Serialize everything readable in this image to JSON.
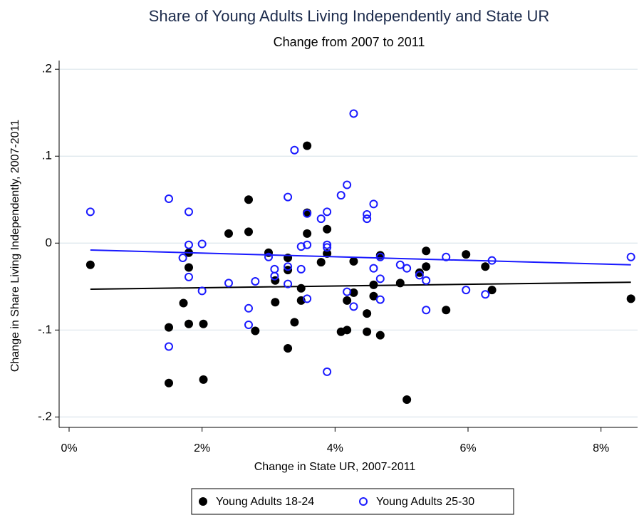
{
  "chart_data": {
    "type": "scatter",
    "title": "Share of Young Adults Living Independently and State UR",
    "subtitle": "Change from 2007 to 2011",
    "x_label": "Change in State UR, 2007-2011",
    "y_label": "Change in Share Living Independently, 2007-2011",
    "xlim": [
      -0.15,
      8.55
    ],
    "ylim": [
      -0.212,
      0.21
    ],
    "xticks": [
      {
        "value": 0,
        "label": "0%"
      },
      {
        "value": 2,
        "label": "2%"
      },
      {
        "value": 4,
        "label": "4%"
      },
      {
        "value": 6,
        "label": "6%"
      },
      {
        "value": 8,
        "label": "8%"
      }
    ],
    "yticks": [
      {
        "value": -0.2,
        "label": "-.2"
      },
      {
        "value": -0.1,
        "label": "-.1"
      },
      0,
      {
        "value": 0.1,
        "label": ".1"
      },
      {
        "value": 0.2,
        "label": ".2"
      }
    ],
    "grid": true,
    "legend": "bottom",
    "series": [
      {
        "name": "Young Adults 18-24",
        "color": "#000000",
        "marker": "filled",
        "x": [
          0.32,
          1.5,
          1.5,
          1.72,
          1.8,
          1.8,
          1.8,
          2.02,
          2.02,
          2.4,
          2.7,
          2.7,
          2.8,
          3.0,
          3.1,
          3.1,
          3.29,
          3.29,
          3.29,
          3.39,
          3.49,
          3.49,
          3.58,
          3.58,
          3.58,
          3.79,
          3.88,
          3.88,
          4.09,
          4.18,
          4.18,
          4.28,
          4.28,
          4.48,
          4.48,
          4.58,
          4.58,
          4.68,
          4.68,
          4.98,
          5.08,
          5.27,
          5.37,
          5.37,
          5.67,
          5.97,
          6.26,
          6.36,
          8.45
        ],
        "values": [
          -0.025,
          -0.097,
          -0.161,
          -0.069,
          -0.011,
          -0.028,
          -0.093,
          -0.093,
          -0.157,
          0.011,
          0.05,
          0.013,
          -0.101,
          -0.011,
          -0.043,
          -0.068,
          -0.017,
          -0.031,
          -0.121,
          -0.091,
          -0.052,
          -0.066,
          0.112,
          0.035,
          0.011,
          -0.022,
          0.016,
          -0.012,
          -0.102,
          -0.066,
          -0.1,
          -0.021,
          -0.057,
          -0.081,
          -0.102,
          -0.048,
          -0.061,
          -0.014,
          -0.106,
          -0.046,
          -0.18,
          -0.034,
          -0.009,
          -0.027,
          -0.077,
          -0.013,
          -0.027,
          -0.054,
          -0.064
        ],
        "fit_x": [
          0.32,
          8.45
        ],
        "fit_values": [
          -0.053,
          -0.045
        ]
      },
      {
        "name": "Young Adults 25-30",
        "color": "#1a1aff",
        "marker": "hollow",
        "x": [
          0.32,
          1.5,
          1.5,
          1.71,
          1.8,
          1.8,
          1.8,
          2.0,
          2.0,
          2.4,
          2.7,
          2.7,
          2.8,
          3.0,
          3.09,
          3.09,
          3.29,
          3.29,
          3.29,
          3.39,
          3.49,
          3.49,
          3.58,
          3.58,
          3.58,
          3.79,
          3.88,
          3.88,
          3.88,
          3.88,
          4.09,
          4.18,
          4.18,
          4.28,
          4.28,
          4.48,
          4.48,
          4.58,
          4.58,
          4.68,
          4.68,
          4.68,
          4.98,
          5.08,
          5.27,
          5.37,
          5.37,
          5.67,
          5.97,
          6.26,
          6.36,
          8.45
        ],
        "values": [
          0.036,
          0.051,
          -0.119,
          -0.017,
          0.036,
          -0.002,
          -0.039,
          -0.001,
          -0.055,
          -0.046,
          -0.075,
          -0.094,
          -0.044,
          -0.016,
          -0.03,
          -0.038,
          0.053,
          -0.027,
          -0.047,
          0.107,
          -0.004,
          -0.03,
          0.034,
          -0.002,
          -0.064,
          0.028,
          0.036,
          -0.002,
          -0.005,
          -0.148,
          0.055,
          0.067,
          -0.056,
          -0.073,
          0.149,
          0.033,
          0.028,
          0.045,
          -0.029,
          -0.041,
          -0.065,
          -0.016,
          -0.025,
          -0.029,
          -0.037,
          -0.043,
          -0.077,
          -0.016,
          -0.054,
          -0.059,
          -0.02,
          -0.016
        ],
        "fit_x": [
          0.32,
          8.45
        ],
        "fit_values": [
          -0.008,
          -0.025
        ]
      }
    ]
  }
}
